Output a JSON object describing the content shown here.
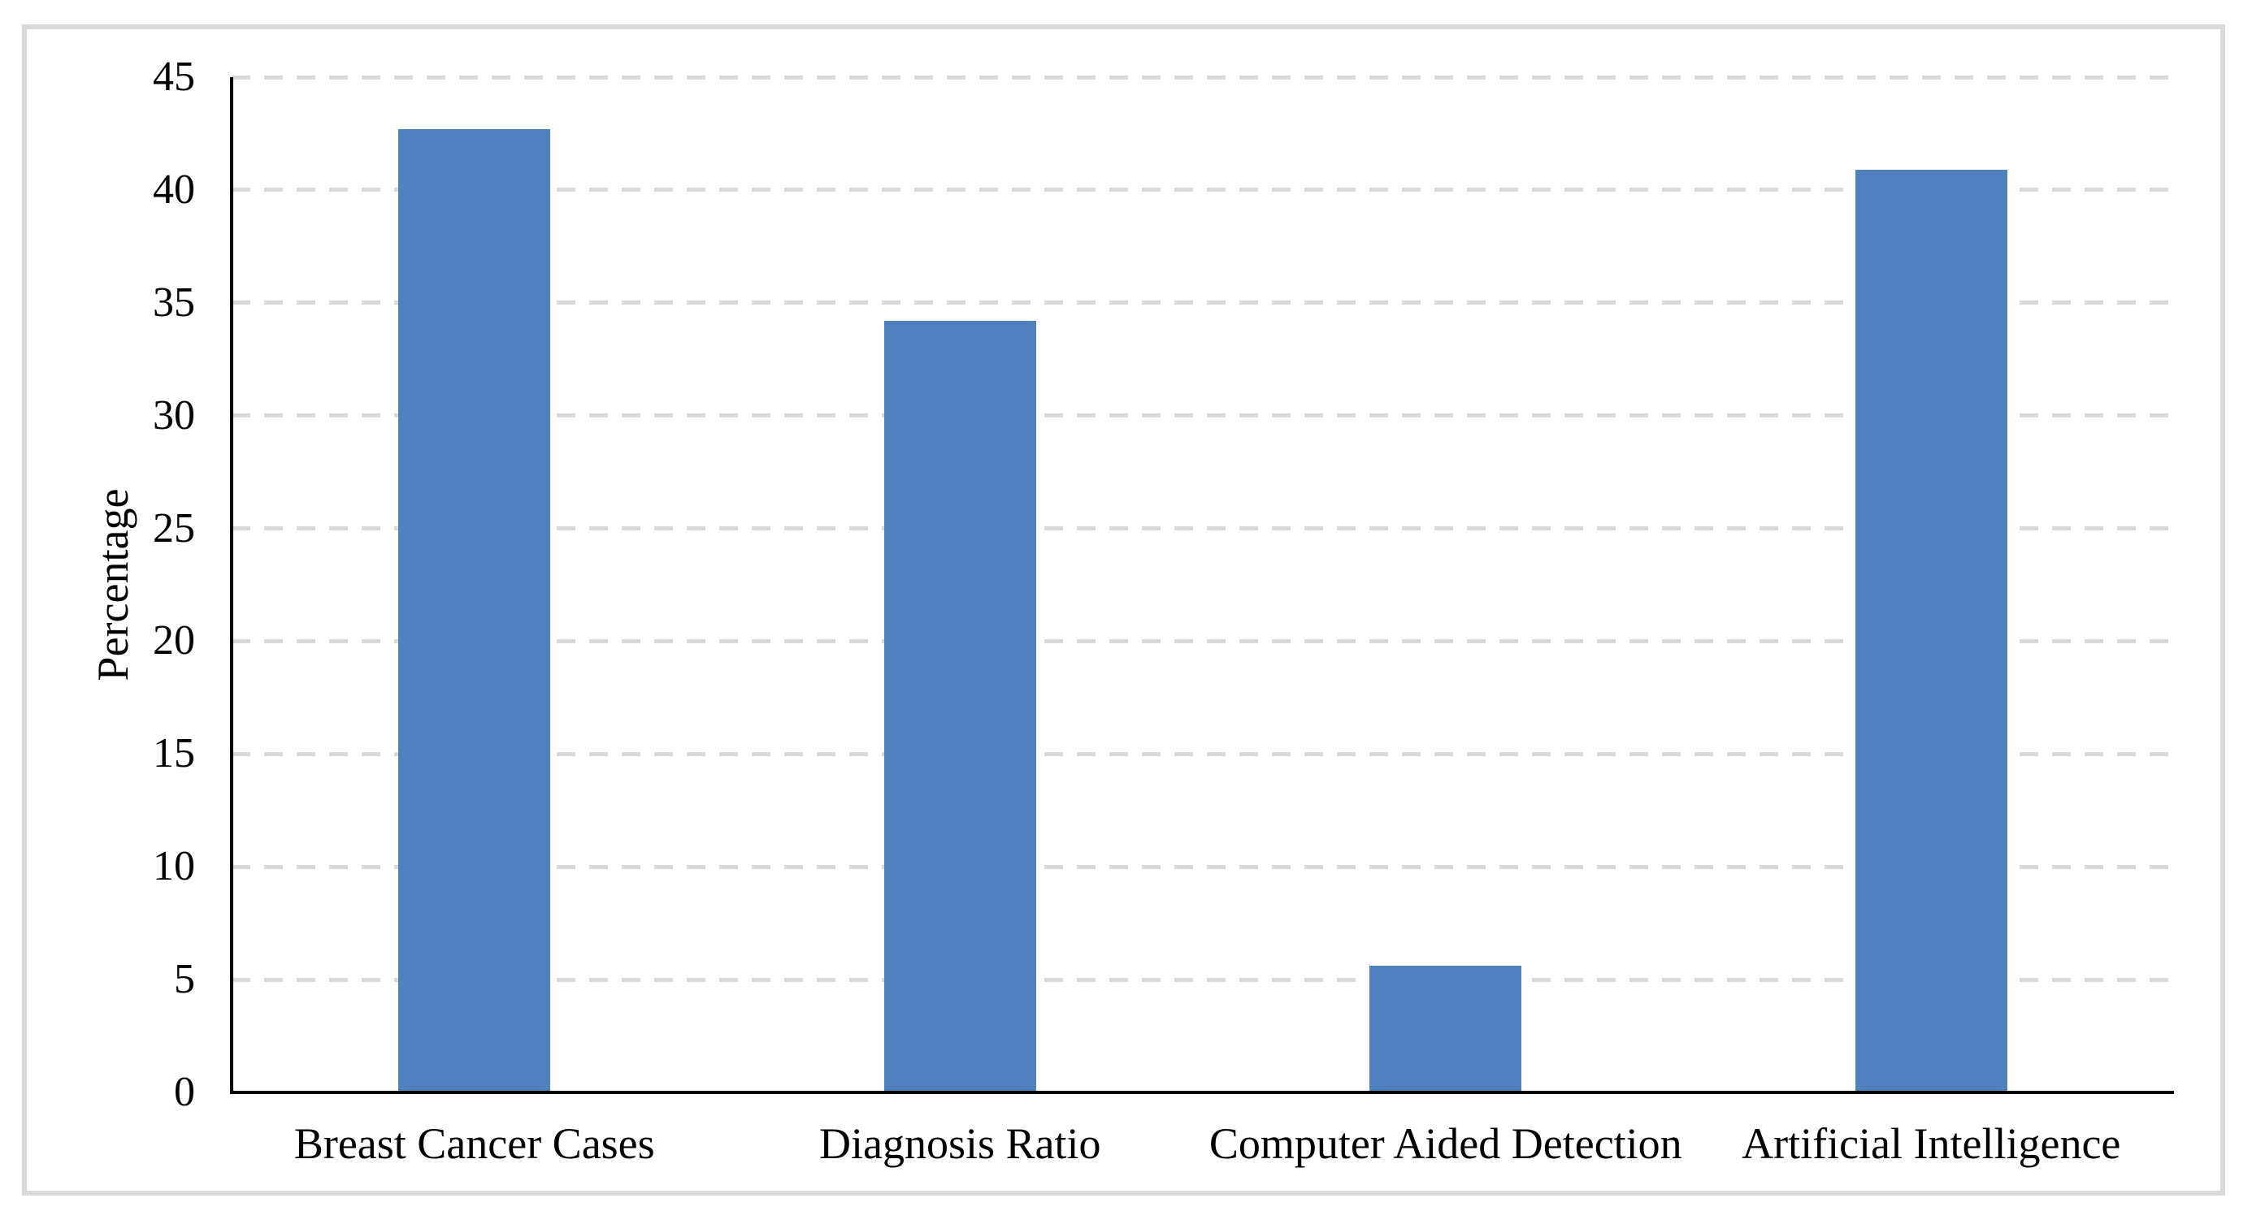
{
  "chart_data": {
    "type": "bar",
    "title": "",
    "xlabel": "",
    "ylabel": "Percentage",
    "categories": [
      "Breast Cancer Cases",
      "Diagnosis Ratio",
      "Computer Aided Detection",
      "Artificial Intelligence"
    ],
    "values": [
      42.7,
      34.2,
      5.6,
      40.9
    ],
    "ylim": [
      0,
      45
    ],
    "yticks": [
      0,
      5,
      10,
      15,
      20,
      25,
      30,
      35,
      40,
      45
    ],
    "grid": "horizontal-dashed",
    "legend_position": "none",
    "colors": {
      "bar": "#4E81BD",
      "gridline": "#D9D9D9",
      "axis": "#000000",
      "frame_border": "#D9D9D9",
      "background": "#FFFFFF",
      "text": "#000000"
    }
  }
}
